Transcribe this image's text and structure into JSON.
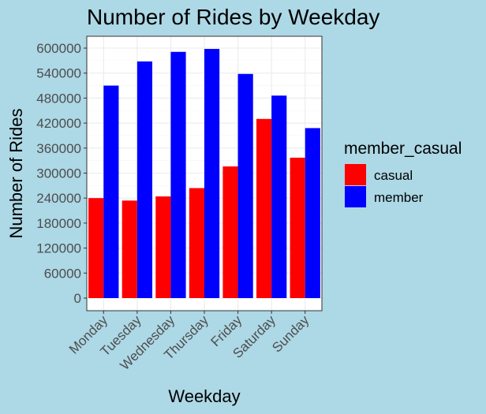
{
  "chart_data": {
    "type": "bar",
    "title": "Number of Rides by Weekday",
    "xlabel": "Weekday",
    "ylabel": "Number of Rides",
    "categories": [
      "Monday",
      "Tuesday",
      "Wednesday",
      "Thursday",
      "Friday",
      "Saturday",
      "Sunday"
    ],
    "series": [
      {
        "name": "casual",
        "color": "#ff0000",
        "values": [
          240000,
          234000,
          244000,
          264000,
          316000,
          430000,
          337000
        ]
      },
      {
        "name": "member",
        "color": "#0000ff",
        "values": [
          510000,
          568000,
          591000,
          598000,
          538000,
          486000,
          408000
        ]
      }
    ],
    "ylim": [
      0,
      600000
    ],
    "yticks": [
      0,
      60000,
      120000,
      180000,
      240000,
      300000,
      360000,
      420000,
      480000,
      540000,
      600000
    ],
    "ytick_labels": [
      "0",
      "60000",
      "120000",
      "180000",
      "240000",
      "300000",
      "360000",
      "420000",
      "480000",
      "540000",
      "600000"
    ],
    "legend": {
      "title": "member_casual",
      "position": "right"
    },
    "grid": true,
    "background": "#add8e6",
    "panel_background": "#ffffff",
    "panel_border": "#333333"
  }
}
